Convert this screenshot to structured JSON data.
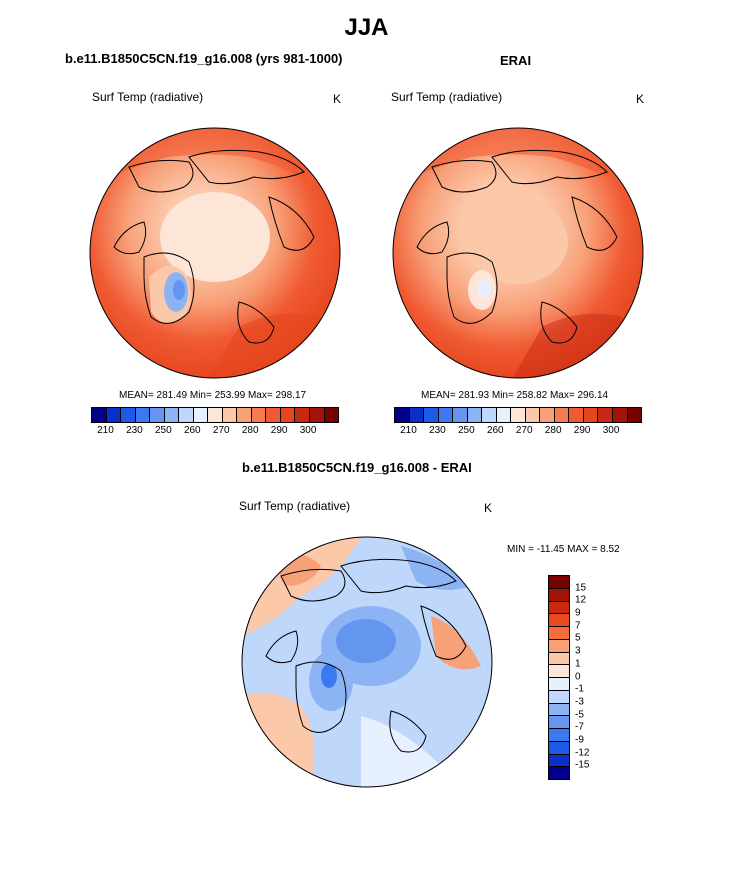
{
  "title": "JJA",
  "panels": [
    {
      "id": "model",
      "title": "b.e11.B1850C5CN.f19_g16.008 (yrs 981-1000)",
      "variable": "Surf Temp (radiative)",
      "units": "K",
      "stats": "MEAN= 281.49  Min= 253.99  Max= 298.17"
    },
    {
      "id": "obs",
      "title": "ERAI",
      "variable": "Surf Temp (radiative)",
      "units": "K",
      "stats": "MEAN= 281.93  Min= 258.82  Max= 296.14"
    },
    {
      "id": "diff",
      "title": "b.e11.B1850C5CN.f19_g16.008 - ERAI",
      "variable": "Surf Temp (radiative)",
      "units": "K",
      "stats": "MIN = -11.45 MAX =   8.52"
    }
  ],
  "abs_colorbar": {
    "colors": [
      "#00008b",
      "#0a2fc8",
      "#1e5ae6",
      "#3c78f0",
      "#6496f0",
      "#8cb4f5",
      "#bed7fa",
      "#e6f0ff",
      "#fde6d8",
      "#fbc8aa",
      "#f8a078",
      "#f57a50",
      "#f05a32",
      "#e6461e",
      "#c82814",
      "#a0140a",
      "#780000"
    ],
    "ticks": [
      "210",
      "230",
      "250",
      "260",
      "270",
      "280",
      "290",
      "300"
    ]
  },
  "diff_colorbar": {
    "colors": [
      "#780000",
      "#a01408",
      "#c82810",
      "#e64a1e",
      "#f56e3c",
      "#f8a078",
      "#fbc8aa",
      "#fde6d8",
      "#e6f0ff",
      "#bed7fa",
      "#8cb4f5",
      "#6496f0",
      "#3c78f0",
      "#1e5ae6",
      "#0a2fc8",
      "#00008b"
    ],
    "ticks": [
      "15",
      "12",
      "9",
      "7",
      "5",
      "3",
      "1",
      "0",
      "-1",
      "-3",
      "-5",
      "-7",
      "-9",
      "-12",
      "-15"
    ]
  }
}
